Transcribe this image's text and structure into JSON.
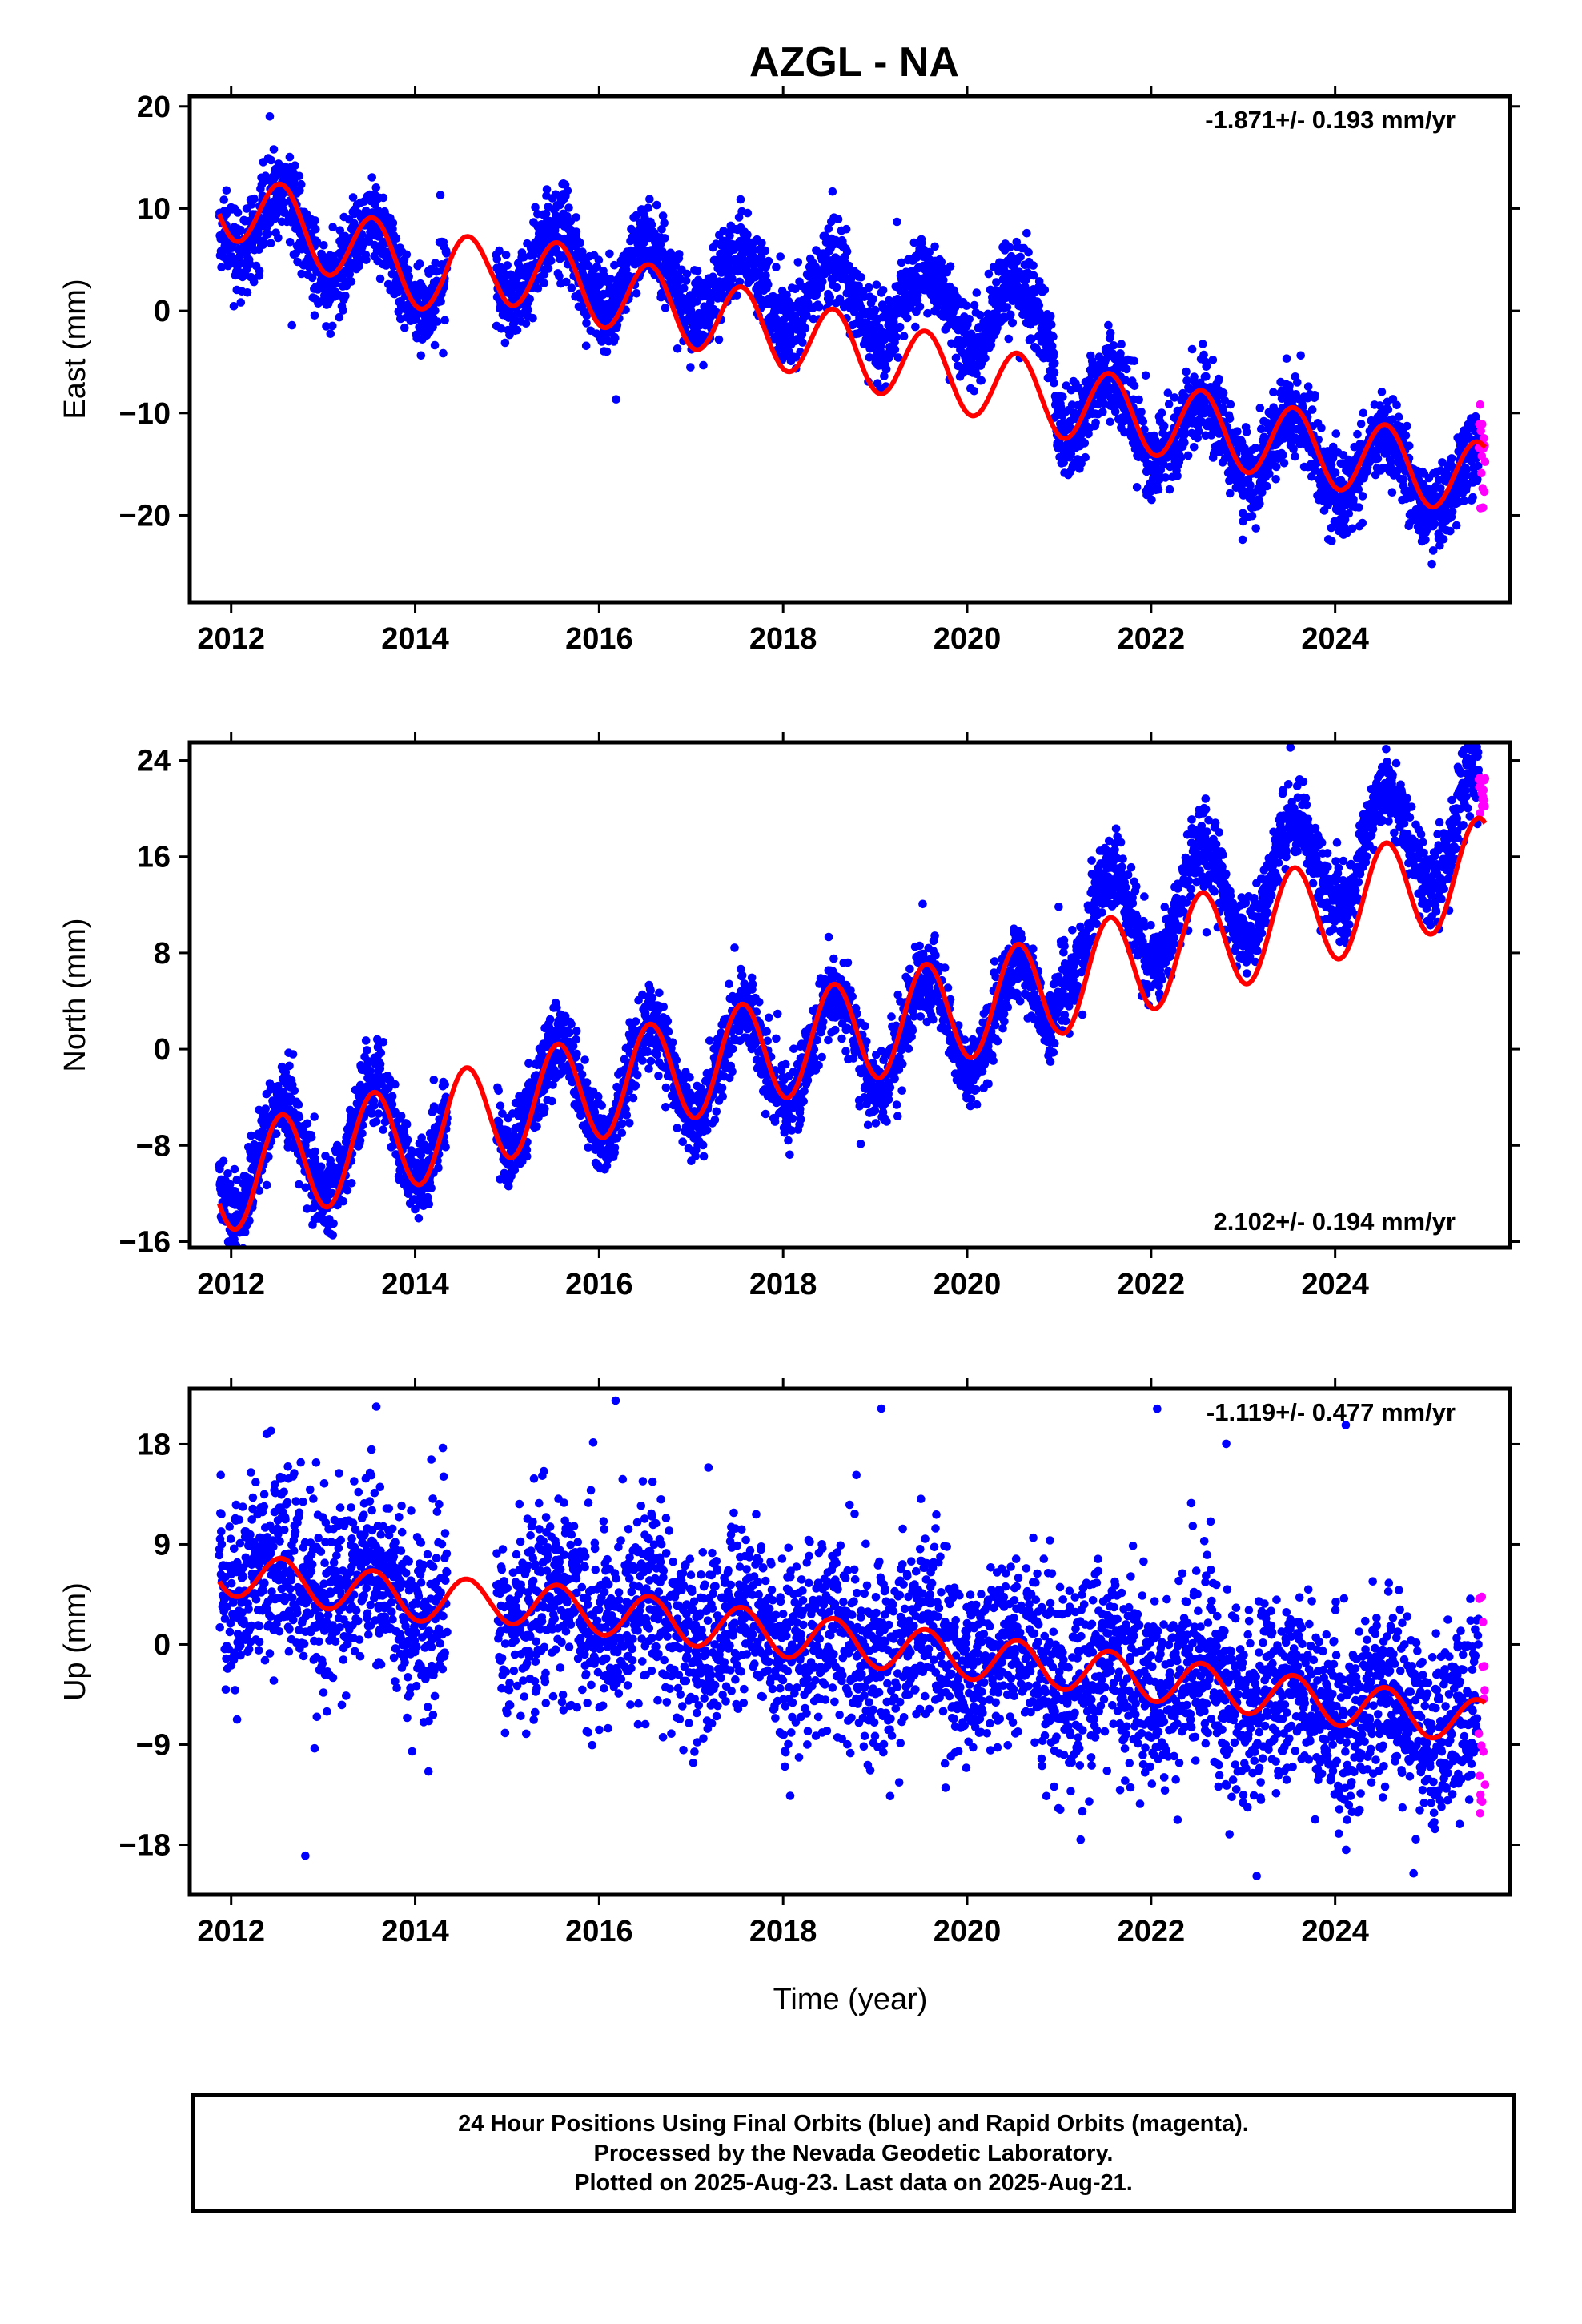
{
  "title": "AZGL - NA",
  "xlabel": "Time (year)",
  "footer": {
    "line1": "24 Hour Positions Using Final Orbits (blue) and Rapid Orbits (magenta).",
    "line2": "Processed by the Nevada Geodetic Laboratory.",
    "line3": "Plotted on 2025-Aug-23. Last data on 2025-Aug-21."
  },
  "colors": {
    "final": "#0000ff",
    "rapid": "#ff00ff",
    "model": "#ff0000"
  },
  "chart_data": [
    {
      "type": "scatter",
      "panel": "east",
      "ylabel": "East (mm)",
      "rate_label": "-1.871+/- 0.193 mm/yr",
      "rate_position": "top-right",
      "xlim": [
        2011.55,
        2025.9
      ],
      "ylim": [
        -28.5,
        21
      ],
      "xticks": [
        2012,
        2014,
        2016,
        2018,
        2020,
        2022,
        2024
      ],
      "yticks": [
        -20,
        -10,
        0,
        10,
        20
      ],
      "data_range": [
        2011.87,
        2025.63
      ],
      "gaps": [
        [
          2014.35,
          2014.88
        ]
      ],
      "rate_mm_yr": -1.871,
      "model_knots": [
        [
          2011.87,
          11
        ],
        [
          2014.3,
          3
        ],
        [
          2014.88,
          4.5
        ],
        [
          2020.9,
          -8.5
        ],
        [
          2021.0,
          -8.8
        ],
        [
          2025.6,
          -16.5
        ]
      ],
      "obs_knots": [
        [
          2011.87,
          10
        ],
        [
          2014.3,
          3
        ],
        [
          2014.88,
          5
        ],
        [
          2020.9,
          -1
        ],
        [
          2021.0,
          -9
        ],
        [
          2025.6,
          -17.5
        ]
      ],
      "annual_amp": 3.6,
      "noise_sd": 2.0,
      "rapid_range": [
        -20,
        -8.5
      ],
      "series": [
        {
          "name": "Final Orbits (blue)",
          "color": "#0000ff",
          "kind": "points"
        },
        {
          "name": "Rapid Orbits (magenta)",
          "color": "#ff00ff",
          "kind": "points"
        },
        {
          "name": "",
          "color": "#ff0000",
          "kind": "line"
        }
      ]
    },
    {
      "type": "scatter",
      "panel": "north",
      "ylabel": "North (mm)",
      "rate_label": "2.102+/- 0.194 mm/yr",
      "rate_position": "bottom-right",
      "xlim": [
        2011.55,
        2025.9
      ],
      "ylim": [
        -16.5,
        25.5
      ],
      "xticks": [
        2012,
        2014,
        2016,
        2018,
        2020,
        2022,
        2024
      ],
      "yticks": [
        -16,
        -8,
        0,
        8,
        16,
        24
      ],
      "data_range": [
        2011.87,
        2025.63
      ],
      "gaps": [
        [
          2014.35,
          2014.88
        ]
      ],
      "rate_mm_yr": 2.102,
      "model_knots": [
        [
          2011.87,
          -11
        ],
        [
          2014.3,
          -6.5
        ],
        [
          2014.88,
          -5
        ],
        [
          2020.9,
          5
        ],
        [
          2021.0,
          5.5
        ],
        [
          2025.6,
          15
        ]
      ],
      "obs_knots": [
        [
          2011.87,
          -9.5
        ],
        [
          2014.3,
          -6
        ],
        [
          2014.88,
          -4.5
        ],
        [
          2020.9,
          3.5
        ],
        [
          2021.0,
          9
        ],
        [
          2025.6,
          19.5
        ]
      ],
      "annual_amp": 4.3,
      "noise_sd": 1.6,
      "rapid_range": [
        19.5,
        23.5
      ],
      "series": [
        {
          "name": "Final Orbits (blue)",
          "color": "#0000ff",
          "kind": "points"
        },
        {
          "name": "Rapid Orbits (magenta)",
          "color": "#ff00ff",
          "kind": "points"
        },
        {
          "name": "",
          "color": "#ff0000",
          "kind": "line"
        }
      ]
    },
    {
      "type": "scatter",
      "panel": "up",
      "ylabel": "Up (mm)",
      "rate_label": "-1.119+/- 0.477 mm/yr",
      "rate_position": "top-right",
      "xlim": [
        2011.55,
        2025.9
      ],
      "ylim": [
        -22.5,
        23
      ],
      "xticks": [
        2012,
        2014,
        2016,
        2018,
        2020,
        2022,
        2024
      ],
      "yticks": [
        -18,
        -9,
        0,
        9,
        18
      ],
      "data_range": [
        2011.87,
        2025.63
      ],
      "gaps": [
        [
          2014.35,
          2014.88
        ]
      ],
      "rate_mm_yr": -1.119,
      "model_knots": [
        [
          2011.87,
          6.5
        ],
        [
          2014.3,
          3.8
        ],
        [
          2014.88,
          4
        ],
        [
          2020.9,
          -2
        ],
        [
          2021.0,
          -2
        ],
        [
          2025.6,
          -7
        ]
      ],
      "obs_knots": [
        [
          2011.87,
          6.5
        ],
        [
          2014.3,
          3.8
        ],
        [
          2014.88,
          4
        ],
        [
          2020.9,
          -2
        ],
        [
          2021.0,
          -2
        ],
        [
          2025.6,
          -7
        ]
      ],
      "annual_amp": 2.0,
      "noise_sd": 4.2,
      "rapid_range": [
        -16,
        4.5
      ],
      "series": [
        {
          "name": "Final Orbits (blue)",
          "color": "#0000ff",
          "kind": "points"
        },
        {
          "name": "Rapid Orbits (magenta)",
          "color": "#ff00ff",
          "kind": "points"
        },
        {
          "name": "",
          "color": "#ff0000",
          "kind": "line"
        }
      ]
    }
  ]
}
